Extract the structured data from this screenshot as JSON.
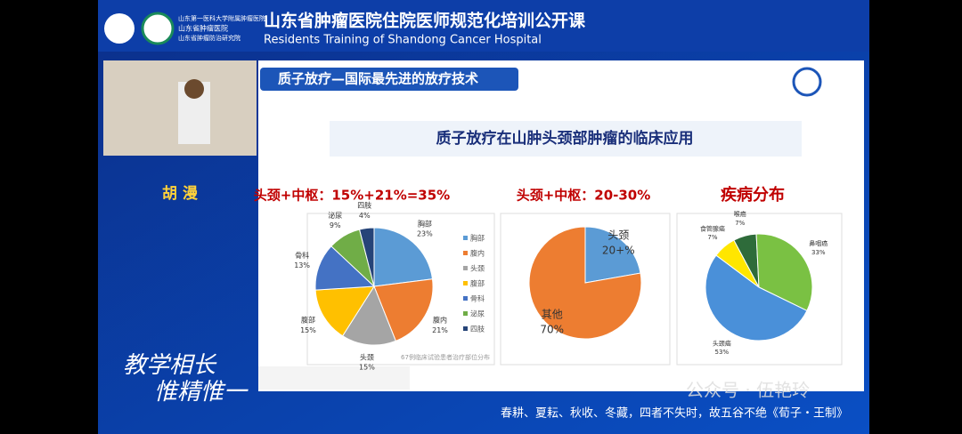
{
  "header": {
    "logo_lines": [
      "山东第一医科大学附属肿瘤医院",
      "山东省肿瘤医院",
      "山东省肿瘤防治研究院"
    ],
    "title": "山东省肿瘤医院住院医师规范化培训公开课",
    "subtitle": "Residents Training of Shandong Cancer Hospital"
  },
  "speaker": {
    "name": "胡 漫"
  },
  "slogan": [
    "教学相长",
    "惟精惟一"
  ],
  "slide": {
    "banner": "质子放疗—国际最先进的放疗技术",
    "title": "质子放疗在山肿头颈部肿瘤的临床应用",
    "footnote": "67例临床试验患者治疗部位分布"
  },
  "chart_data": [
    {
      "type": "pie",
      "title": "头颈+中枢：15%+21%=35%",
      "categories": [
        "胸部",
        "腹内",
        "头颈",
        "腹部",
        "骨科",
        "泌尿",
        "四肢"
      ],
      "values": [
        23,
        21,
        15,
        15,
        13,
        9,
        4
      ],
      "value_labels": [
        "23%",
        "21%",
        "15%",
        "15%",
        "13%",
        "9%",
        "4%"
      ],
      "colors": [
        "#5b9bd5",
        "#ed7d31",
        "#a5a5a5",
        "#ffc000",
        "#4472c4",
        "#70ad47",
        "#264478"
      ],
      "legend": "right"
    },
    {
      "type": "pie",
      "title": "头颈+中枢：20-30%",
      "categories": [
        "头颈",
        "其他"
      ],
      "values": [
        20,
        70
      ],
      "value_labels": [
        "20+%",
        "70%"
      ],
      "colors": [
        "#5b9bd5",
        "#ed7d31"
      ]
    },
    {
      "type": "pie",
      "title": "疾病分布",
      "categories": [
        "喉癌",
        "鼻咽癌",
        "头颈癌",
        "食管腺癌"
      ],
      "values": [
        7,
        33,
        53,
        7
      ],
      "value_labels": [
        "7%",
        "33%",
        "53%",
        "7%"
      ],
      "colors": [
        "#2e6b3a",
        "#7ac143",
        "#4a90d9",
        "#ffe600"
      ]
    }
  ],
  "caption": "春耕、夏耘、秋收、冬藏，四者不失时，故五谷不绝《荀子・王制》",
  "watermark": "公众号 · 伍艳玲"
}
